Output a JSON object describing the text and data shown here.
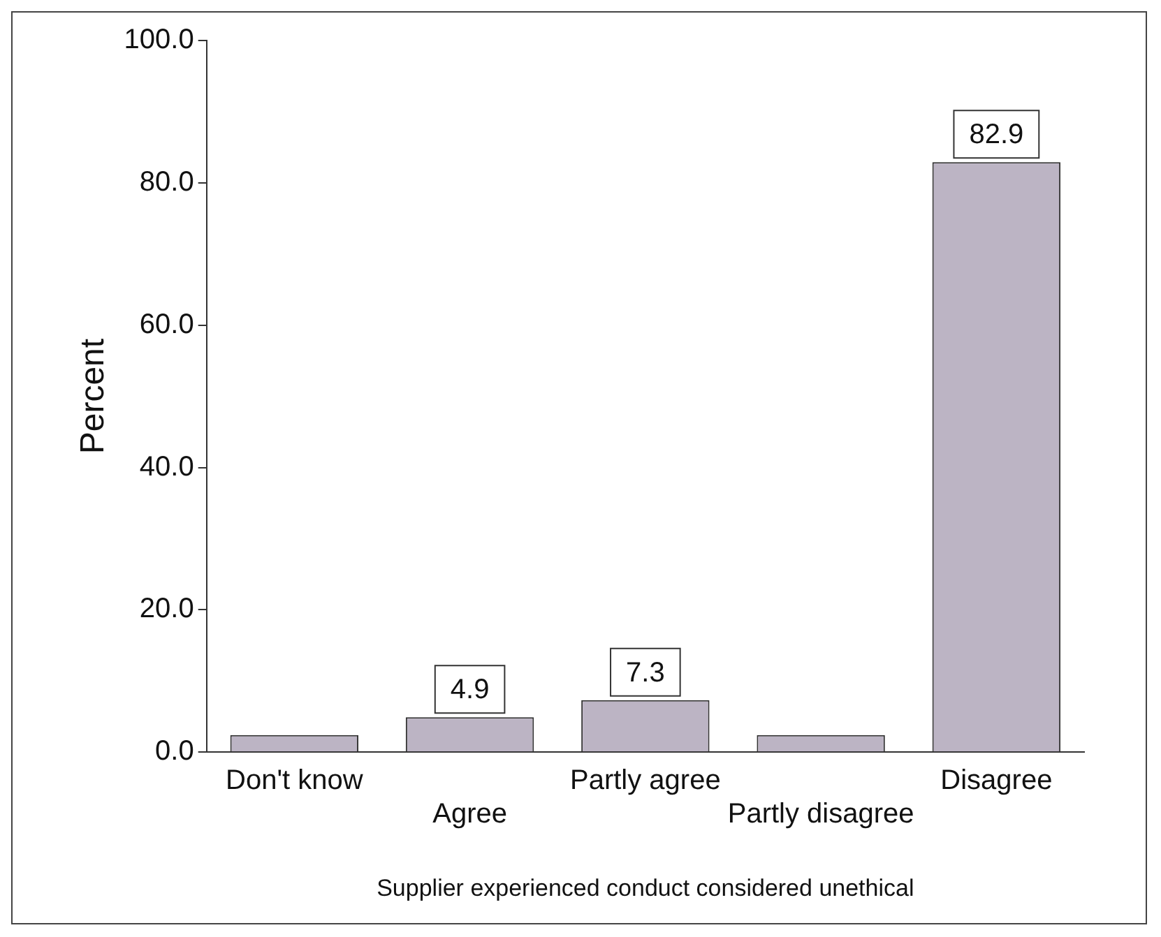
{
  "chart_data": {
    "type": "bar",
    "xlabel": "Supplier experienced conduct considered unethical",
    "ylabel": "Percent",
    "categories": [
      "Don't know",
      "Agree",
      "Partly agree",
      "Partly disagree",
      "Disagree"
    ],
    "values": [
      2.4,
      4.9,
      7.3,
      2.4,
      82.9
    ],
    "value_labels": [
      null,
      "4.9",
      "7.3",
      null,
      "82.9"
    ],
    "color": "#bcb4c4",
    "ylim": [
      0,
      100
    ],
    "yticks": [
      {
        "value": 0,
        "label": "0.0"
      },
      {
        "value": 20,
        "label": "20.0"
      },
      {
        "value": 40,
        "label": "40.0"
      },
      {
        "value": 60,
        "label": "60.0"
      },
      {
        "value": 80,
        "label": "80.0"
      },
      {
        "value": 100,
        "label": "100.0"
      }
    ],
    "grid": false,
    "legend": false
  }
}
